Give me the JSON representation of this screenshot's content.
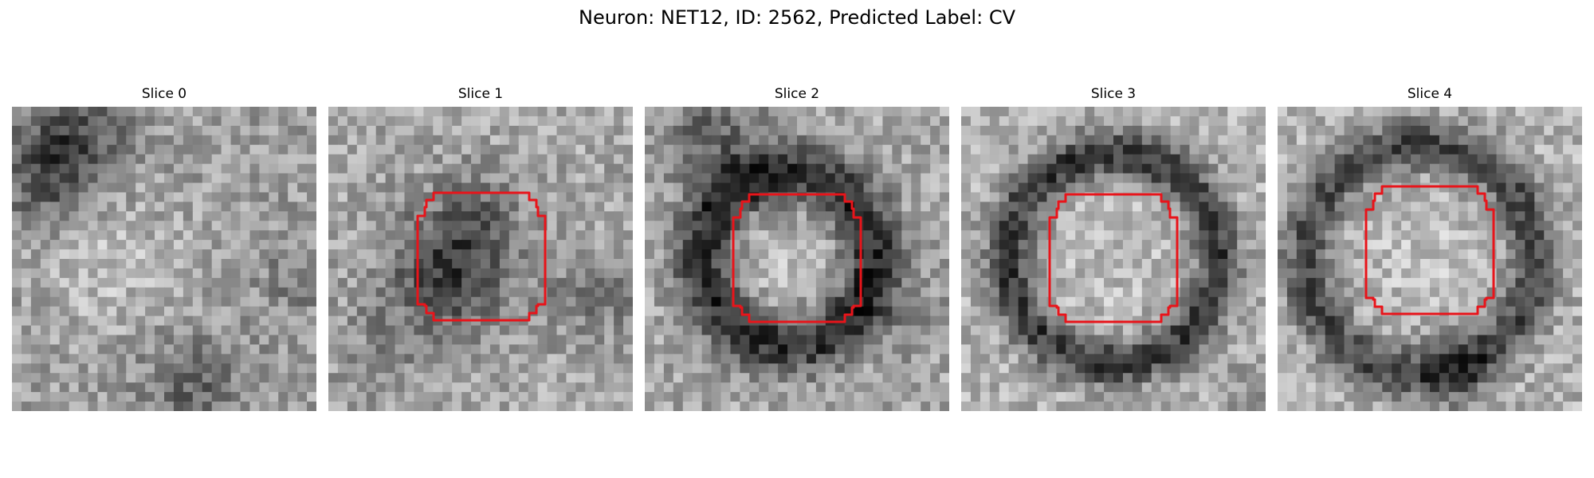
{
  "figure": {
    "title": "Neuron: NET12, ID: 2562, Predicted Label: CV"
  },
  "panels": [
    {
      "title": "Slice 0",
      "has_contour": false
    },
    {
      "title": "Slice 1",
      "has_contour": true
    },
    {
      "title": "Slice 2",
      "has_contour": true
    },
    {
      "title": "Slice 3",
      "has_contour": true
    },
    {
      "title": "Slice 4",
      "has_contour": true
    }
  ],
  "contour_color": "#e8141a",
  "colormap": "grayscale"
}
